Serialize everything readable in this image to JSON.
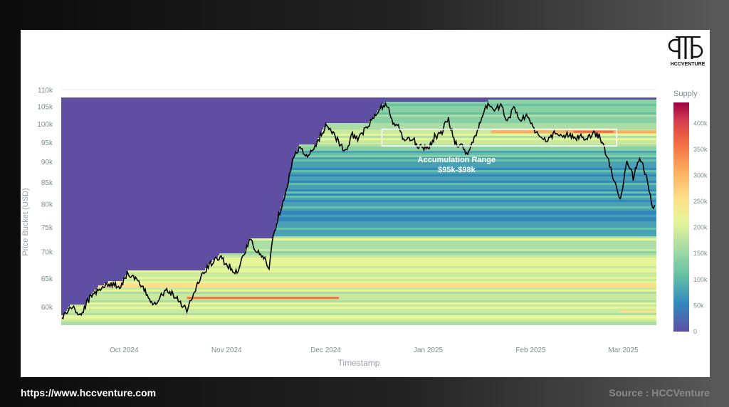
{
  "footer": {
    "url": "https://www.hccventure.com",
    "source": "Source : HCCVenture"
  },
  "logo": {
    "text": "HCCVENTURE"
  },
  "colors": {
    "low": "#5e4fa2",
    "mid_low": "#3288bd",
    "mid": "#66c2a5",
    "mid2": "#abdda4",
    "mid3": "#e6f598",
    "mid4": "#fee08b",
    "mid5": "#fdae61",
    "mid6": "#f46d43",
    "high": "#9e0142",
    "price_line": "#000000",
    "annotation_box": "#ffffff"
  },
  "chart_data": {
    "type": "heatmap",
    "title": "",
    "xlabel": "Timestamp",
    "ylabel": "Price Bucket (USD)",
    "y_scale": "log",
    "ylim": [
      57000,
      110000
    ],
    "y_ticks": [
      60000,
      65000,
      70000,
      75000,
      80000,
      85000,
      90000,
      95000,
      100000,
      105000,
      110000
    ],
    "y_tick_labels": [
      "60k",
      "65k",
      "70k",
      "75k",
      "80k",
      "85k",
      "90k",
      "95k",
      "100k",
      "105k",
      "110k"
    ],
    "x_tick_labels": [
      "Oct 2024",
      "Nov 2024",
      "Dec 2024",
      "Jan 2025",
      "Feb 2025",
      "Mar 2025"
    ],
    "x_tick_dates": [
      "2024-10-01",
      "2024-11-01",
      "2024-12-01",
      "2025-01-01",
      "2025-02-01",
      "2025-03-01"
    ],
    "xlim": [
      "2024-09-12",
      "2025-03-11"
    ],
    "colorbar": {
      "title": "Supply",
      "range": [
        0,
        440000
      ],
      "ticks": [
        0,
        50000,
        100000,
        150000,
        200000,
        250000,
        300000,
        350000,
        400000
      ],
      "tick_labels": [
        "0",
        "50k",
        "100k",
        "150k",
        "200k",
        "250k",
        "300k",
        "350k",
        "400k"
      ]
    },
    "annotation": {
      "label_line1": "Accumulation Range",
      "label_line2": "$95k-$98k",
      "price_range": [
        94000,
        98500
      ],
      "date_range": [
        "2024-12-18",
        "2025-02-27"
      ]
    },
    "price_series": [
      [
        "2024-09-12",
        58000
      ],
      [
        "2024-09-15",
        60000
      ],
      [
        "2024-09-18",
        58500
      ],
      [
        "2024-09-20",
        61000
      ],
      [
        "2024-09-23",
        63000
      ],
      [
        "2024-09-27",
        64000
      ],
      [
        "2024-09-30",
        63500
      ],
      [
        "2024-10-02",
        66000
      ],
      [
        "2024-10-05",
        64500
      ],
      [
        "2024-10-08",
        62000
      ],
      [
        "2024-10-10",
        60500
      ],
      [
        "2024-10-14",
        63000
      ],
      [
        "2024-10-17",
        61500
      ],
      [
        "2024-10-20",
        59500
      ],
      [
        "2024-10-22",
        62000
      ],
      [
        "2024-10-24",
        65000
      ],
      [
        "2024-10-27",
        67500
      ],
      [
        "2024-10-30",
        69000
      ],
      [
        "2024-11-02",
        67000
      ],
      [
        "2024-11-04",
        66000
      ],
      [
        "2024-11-06",
        69000
      ],
      [
        "2024-11-08",
        72500
      ],
      [
        "2024-11-10",
        70000
      ],
      [
        "2024-11-12",
        69000
      ],
      [
        "2024-11-14",
        67000
      ],
      [
        "2024-11-15",
        73000
      ],
      [
        "2024-11-17",
        78000
      ],
      [
        "2024-11-19",
        83000
      ],
      [
        "2024-11-21",
        90000
      ],
      [
        "2024-11-23",
        94000
      ],
      [
        "2024-11-25",
        91000
      ],
      [
        "2024-11-27",
        92500
      ],
      [
        "2024-11-29",
        96000
      ],
      [
        "2024-12-01",
        99500
      ],
      [
        "2024-12-03",
        98000
      ],
      [
        "2024-12-05",
        95000
      ],
      [
        "2024-12-07",
        92000
      ],
      [
        "2024-12-09",
        97000
      ],
      [
        "2024-12-11",
        96000
      ],
      [
        "2024-12-13",
        98500
      ],
      [
        "2024-12-15",
        101000
      ],
      [
        "2024-12-17",
        103500
      ],
      [
        "2024-12-19",
        106000
      ],
      [
        "2024-12-20",
        104000
      ],
      [
        "2024-12-21",
        101000
      ],
      [
        "2024-12-23",
        99000
      ],
      [
        "2024-12-25",
        95000
      ],
      [
        "2024-12-27",
        96000
      ],
      [
        "2024-12-29",
        94000
      ],
      [
        "2025-01-01",
        93500
      ],
      [
        "2025-01-03",
        96500
      ],
      [
        "2025-01-05",
        97500
      ],
      [
        "2025-01-07",
        101500
      ],
      [
        "2025-01-09",
        95000
      ],
      [
        "2025-01-11",
        94000
      ],
      [
        "2025-01-13",
        92000
      ],
      [
        "2025-01-15",
        96500
      ],
      [
        "2025-01-17",
        100500
      ],
      [
        "2025-01-19",
        106000
      ],
      [
        "2025-01-21",
        104000
      ],
      [
        "2025-01-23",
        105000
      ],
      [
        "2025-01-25",
        101000
      ],
      [
        "2025-01-27",
        104500
      ],
      [
        "2025-01-29",
        101000
      ],
      [
        "2025-01-31",
        102500
      ],
      [
        "2025-02-02",
        98500
      ],
      [
        "2025-02-04",
        96000
      ],
      [
        "2025-02-06",
        95000
      ],
      [
        "2025-02-08",
        97500
      ],
      [
        "2025-02-10",
        96500
      ],
      [
        "2025-02-12",
        97000
      ],
      [
        "2025-02-14",
        96000
      ],
      [
        "2025-02-16",
        96500
      ],
      [
        "2025-02-18",
        95500
      ],
      [
        "2025-02-20",
        97500
      ],
      [
        "2025-02-22",
        96500
      ],
      [
        "2025-02-24",
        91500
      ],
      [
        "2025-02-26",
        86000
      ],
      [
        "2025-02-28",
        80000
      ],
      [
        "2025-03-01",
        84000
      ],
      [
        "2025-03-02",
        91000
      ],
      [
        "2025-03-04",
        86000
      ],
      [
        "2025-03-06",
        91500
      ],
      [
        "2025-03-08",
        86000
      ],
      [
        "2025-03-10",
        79000
      ]
    ]
  }
}
